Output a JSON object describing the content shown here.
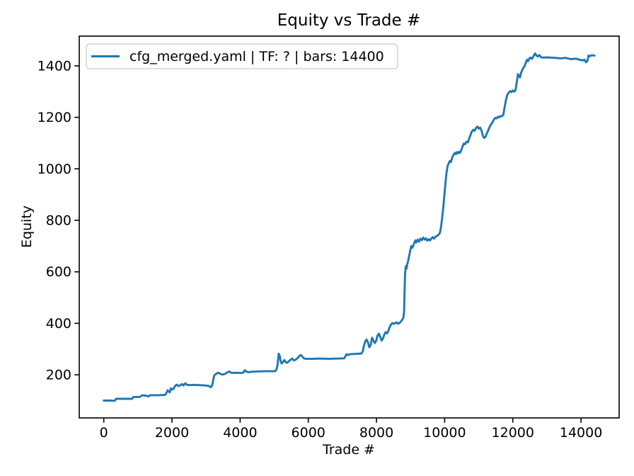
{
  "chart_data": {
    "type": "line",
    "title": "Equity vs Trade #",
    "xlabel": "Trade #",
    "ylabel": "Equity",
    "grid": false,
    "background": "#ffffff",
    "axis_color": "#000000",
    "xlim": [
      -720,
      15119
    ],
    "ylim": [
      32.6,
      1515.4
    ],
    "xticks": [
      0,
      2000,
      4000,
      6000,
      8000,
      10000,
      12000,
      14000
    ],
    "yticks": [
      200,
      400,
      600,
      800,
      1000,
      1200,
      1400
    ],
    "legend": {
      "position": "upper left",
      "label": "cfg_merged.yaml | TF: ? | bars: 14400",
      "border_color": "#cccccc",
      "background": "#ffffff"
    },
    "series": [
      {
        "name": "cfg_merged.yaml | TF: ? | bars: 14400",
        "color": "#1f77b4",
        "points": [
          [
            0,
            100
          ],
          [
            200,
            100
          ],
          [
            320,
            99
          ],
          [
            360,
            107
          ],
          [
            700,
            107
          ],
          [
            830,
            107
          ],
          [
            870,
            114
          ],
          [
            1050,
            114
          ],
          [
            1120,
            120
          ],
          [
            1250,
            119
          ],
          [
            1310,
            116
          ],
          [
            1360,
            121
          ],
          [
            1600,
            121
          ],
          [
            1800,
            122
          ],
          [
            1840,
            130
          ],
          [
            1870,
            140
          ],
          [
            1900,
            136
          ],
          [
            1930,
            132
          ],
          [
            1970,
            148
          ],
          [
            2000,
            143
          ],
          [
            2050,
            146
          ],
          [
            2090,
            157
          ],
          [
            2140,
            162
          ],
          [
            2190,
            156
          ],
          [
            2240,
            159
          ],
          [
            2290,
            164
          ],
          [
            2340,
            159
          ],
          [
            2390,
            167
          ],
          [
            2440,
            161
          ],
          [
            2520,
            160
          ],
          [
            2650,
            161
          ],
          [
            2800,
            160
          ],
          [
            2950,
            159
          ],
          [
            3080,
            157
          ],
          [
            3140,
            152
          ],
          [
            3180,
            159
          ],
          [
            3210,
            180
          ],
          [
            3240,
            198
          ],
          [
            3280,
            202
          ],
          [
            3320,
            206
          ],
          [
            3360,
            208
          ],
          [
            3420,
            204
          ],
          [
            3470,
            201
          ],
          [
            3530,
            202
          ],
          [
            3570,
            205
          ],
          [
            3620,
            209
          ],
          [
            3680,
            213
          ],
          [
            3730,
            208
          ],
          [
            3800,
            207
          ],
          [
            3900,
            208
          ],
          [
            4020,
            207
          ],
          [
            4090,
            208
          ],
          [
            4140,
            218
          ],
          [
            4190,
            212
          ],
          [
            4260,
            210
          ],
          [
            4350,
            212
          ],
          [
            4500,
            213
          ],
          [
            4700,
            214
          ],
          [
            4900,
            214
          ],
          [
            5030,
            214
          ],
          [
            5070,
            222
          ],
          [
            5100,
            242
          ],
          [
            5130,
            282
          ],
          [
            5160,
            274
          ],
          [
            5190,
            252
          ],
          [
            5220,
            244
          ],
          [
            5260,
            251
          ],
          [
            5300,
            257
          ],
          [
            5340,
            249
          ],
          [
            5380,
            247
          ],
          [
            5430,
            253
          ],
          [
            5480,
            259
          ],
          [
            5530,
            263
          ],
          [
            5570,
            256
          ],
          [
            5620,
            258
          ],
          [
            5670,
            263
          ],
          [
            5710,
            268
          ],
          [
            5750,
            275
          ],
          [
            5790,
            277
          ],
          [
            5830,
            270
          ],
          [
            5870,
            264
          ],
          [
            5920,
            262
          ],
          [
            6100,
            262
          ],
          [
            6350,
            263
          ],
          [
            6600,
            262
          ],
          [
            6850,
            263
          ],
          [
            7050,
            264
          ],
          [
            7090,
            272
          ],
          [
            7120,
            280
          ],
          [
            7170,
            277
          ],
          [
            7220,
            280
          ],
          [
            7350,
            281
          ],
          [
            7480,
            282
          ],
          [
            7560,
            283
          ],
          [
            7600,
            292
          ],
          [
            7630,
            312
          ],
          [
            7670,
            330
          ],
          [
            7710,
            337
          ],
          [
            7750,
            326
          ],
          [
            7790,
            307
          ],
          [
            7830,
            316
          ],
          [
            7870,
            344
          ],
          [
            7910,
            333
          ],
          [
            7950,
            323
          ],
          [
            7990,
            332
          ],
          [
            8030,
            352
          ],
          [
            8070,
            360
          ],
          [
            8110,
            347
          ],
          [
            8150,
            333
          ],
          [
            8190,
            341
          ],
          [
            8230,
            356
          ],
          [
            8270,
            366
          ],
          [
            8310,
            361
          ],
          [
            8350,
            371
          ],
          [
            8390,
            386
          ],
          [
            8430,
            396
          ],
          [
            8470,
            401
          ],
          [
            8510,
            398
          ],
          [
            8550,
            401
          ],
          [
            8590,
            404
          ],
          [
            8630,
            398
          ],
          [
            8670,
            401
          ],
          [
            8710,
            406
          ],
          [
            8750,
            413
          ],
          [
            8790,
            422
          ],
          [
            8810,
            445
          ],
          [
            8825,
            530
          ],
          [
            8840,
            595
          ],
          [
            8860,
            622
          ],
          [
            8880,
            612
          ],
          [
            8900,
            628
          ],
          [
            8930,
            643
          ],
          [
            8960,
            662
          ],
          [
            8990,
            684
          ],
          [
            9020,
            700
          ],
          [
            9050,
            693
          ],
          [
            9080,
            702
          ],
          [
            9110,
            712
          ],
          [
            9140,
            722
          ],
          [
            9170,
            714
          ],
          [
            9210,
            725
          ],
          [
            9250,
            717
          ],
          [
            9290,
            729
          ],
          [
            9330,
            723
          ],
          [
            9370,
            733
          ],
          [
            9410,
            725
          ],
          [
            9450,
            730
          ],
          [
            9490,
            721
          ],
          [
            9530,
            727
          ],
          [
            9570,
            722
          ],
          [
            9610,
            729
          ],
          [
            9650,
            735
          ],
          [
            9690,
            729
          ],
          [
            9730,
            736
          ],
          [
            9770,
            739
          ],
          [
            9810,
            743
          ],
          [
            9850,
            748
          ],
          [
            9880,
            762
          ],
          [
            9910,
            792
          ],
          [
            9940,
            825
          ],
          [
            9970,
            865
          ],
          [
            10000,
            910
          ],
          [
            10030,
            955
          ],
          [
            10060,
            990
          ],
          [
            10090,
            1012
          ],
          [
            10120,
            1022
          ],
          [
            10150,
            1030
          ],
          [
            10180,
            1026
          ],
          [
            10210,
            1038
          ],
          [
            10240,
            1050
          ],
          [
            10270,
            1056
          ],
          [
            10300,
            1062
          ],
          [
            10330,
            1057
          ],
          [
            10360,
            1065
          ],
          [
            10390,
            1060
          ],
          [
            10420,
            1066
          ],
          [
            10450,
            1062
          ],
          [
            10480,
            1070
          ],
          [
            10520,
            1085
          ],
          [
            10560,
            1098
          ],
          [
            10600,
            1096
          ],
          [
            10640,
            1105
          ],
          [
            10680,
            1103
          ],
          [
            10720,
            1118
          ],
          [
            10760,
            1132
          ],
          [
            10800,
            1145
          ],
          [
            10840,
            1152
          ],
          [
            10880,
            1148
          ],
          [
            10920,
            1158
          ],
          [
            10960,
            1164
          ],
          [
            11000,
            1156
          ],
          [
            11040,
            1160
          ],
          [
            11080,
            1150
          ],
          [
            11120,
            1128
          ],
          [
            11160,
            1120
          ],
          [
            11200,
            1125
          ],
          [
            11240,
            1138
          ],
          [
            11280,
            1150
          ],
          [
            11320,
            1163
          ],
          [
            11360,
            1172
          ],
          [
            11400,
            1180
          ],
          [
            11440,
            1190
          ],
          [
            11480,
            1198
          ],
          [
            11520,
            1196
          ],
          [
            11560,
            1202
          ],
          [
            11600,
            1200
          ],
          [
            11640,
            1205
          ],
          [
            11680,
            1204
          ],
          [
            11720,
            1210
          ],
          [
            11760,
            1240
          ],
          [
            11800,
            1268
          ],
          [
            11840,
            1288
          ],
          [
            11880,
            1296
          ],
          [
            11920,
            1302
          ],
          [
            11960,
            1298
          ],
          [
            12000,
            1304
          ],
          [
            12040,
            1300
          ],
          [
            12080,
            1306
          ],
          [
            12120,
            1340
          ],
          [
            12150,
            1368
          ],
          [
            12180,
            1360
          ],
          [
            12210,
            1355
          ],
          [
            12240,
            1372
          ],
          [
            12270,
            1382
          ],
          [
            12300,
            1390
          ],
          [
            12340,
            1398
          ],
          [
            12380,
            1412
          ],
          [
            12420,
            1424
          ],
          [
            12450,
            1418
          ],
          [
            12480,
            1428
          ],
          [
            12520,
            1432
          ],
          [
            12560,
            1427
          ],
          [
            12600,
            1436
          ],
          [
            12650,
            1448
          ],
          [
            12690,
            1441
          ],
          [
            12730,
            1436
          ],
          [
            12780,
            1442
          ],
          [
            12830,
            1433
          ],
          [
            12900,
            1432
          ],
          [
            13000,
            1433
          ],
          [
            13100,
            1432
          ],
          [
            13250,
            1431
          ],
          [
            13400,
            1429
          ],
          [
            13550,
            1431
          ],
          [
            13700,
            1426
          ],
          [
            13850,
            1428
          ],
          [
            13950,
            1424
          ],
          [
            14050,
            1421
          ],
          [
            14100,
            1424
          ],
          [
            14150,
            1414
          ],
          [
            14190,
            1419
          ],
          [
            14220,
            1440
          ],
          [
            14260,
            1437
          ],
          [
            14310,
            1441
          ],
          [
            14399,
            1440
          ]
        ]
      }
    ]
  }
}
